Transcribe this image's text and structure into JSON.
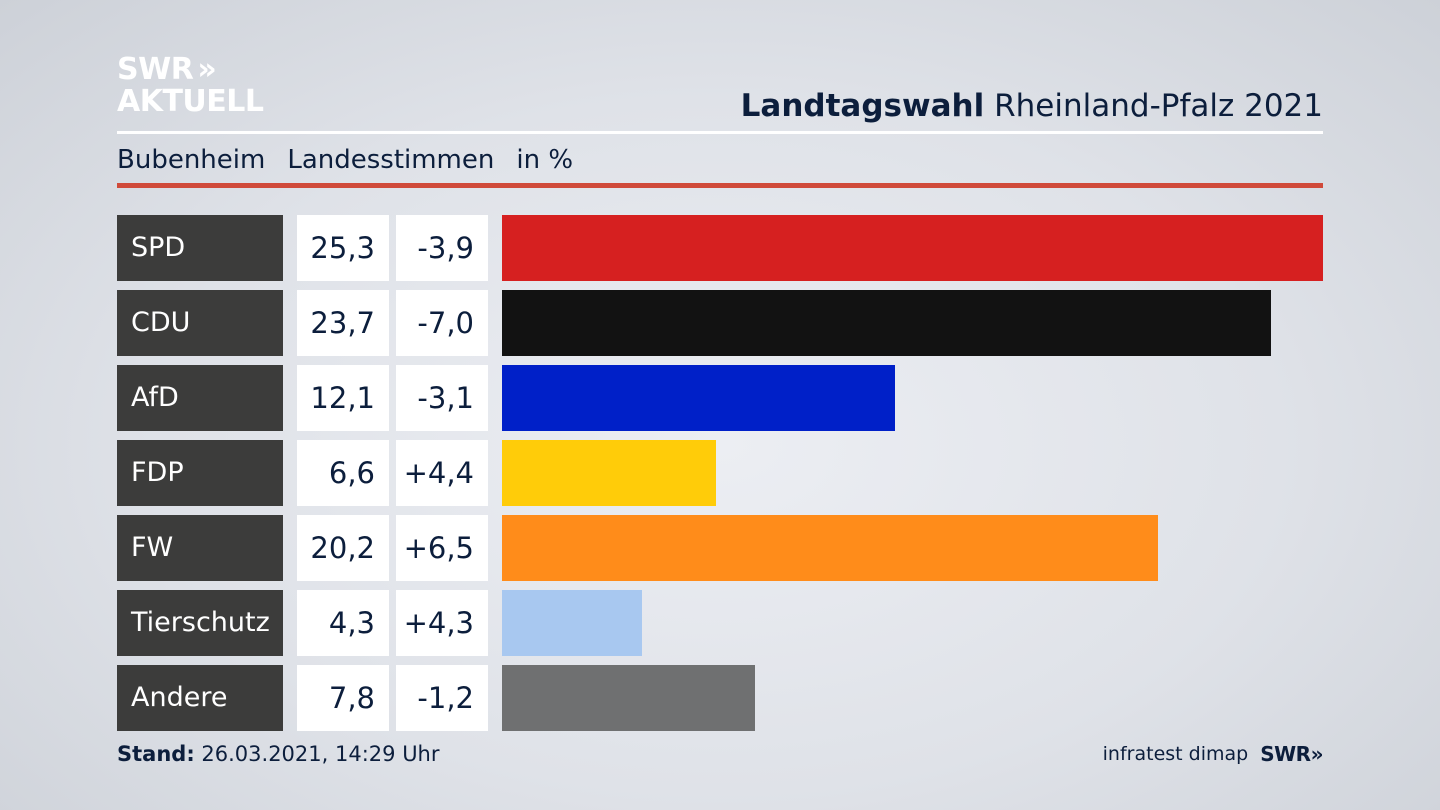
{
  "logo": {
    "line1": "SWR",
    "chevrons": "»",
    "line2": "AKTUELL"
  },
  "header": {
    "title_bold": "Landtagswahl",
    "title_rest": "Rheinland-Pfalz 2021"
  },
  "subtitle": {
    "place": "Bubenheim",
    "measure": "Landesstimmen",
    "unit": "in %"
  },
  "footer": {
    "stand_label": "Stand:",
    "stand_value": "26.03.2021, 14:29 Uhr",
    "source": "infratest dimap",
    "brand": "SWR",
    "brand_chevrons": "»"
  },
  "colors": {
    "SPD": "#d62020",
    "CDU": "#121212",
    "AfD": "#0020c8",
    "FDP": "#ffcc09",
    "FW": "#ff8c1a",
    "Tierschutz": "#a8c8f0",
    "Andere": "#6f7071",
    "accent_rule": "#d04a3a"
  },
  "chart_data": {
    "type": "bar",
    "orientation": "horizontal",
    "categories": [
      "SPD",
      "CDU",
      "AfD",
      "FDP",
      "FW",
      "Tierschutz",
      "Andere"
    ],
    "values": [
      25.3,
      23.7,
      12.1,
      6.6,
      20.2,
      4.3,
      7.8
    ],
    "value_labels": [
      "25,3",
      "23,7",
      "12,1",
      "6,6",
      "20,2",
      "4,3",
      "7,8"
    ],
    "changes": [
      -3.9,
      -7.0,
      -3.1,
      4.4,
      6.5,
      4.3,
      -1.2
    ],
    "change_labels": [
      "-3,9",
      "-7,0",
      "-3,1",
      "+4,4",
      "+6,5",
      "+4,3",
      "-1,2"
    ],
    "xlim": [
      0,
      25.3
    ],
    "grid": false
  }
}
